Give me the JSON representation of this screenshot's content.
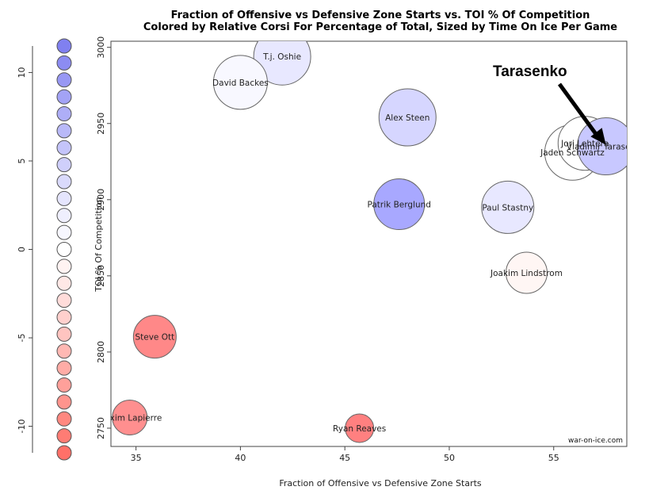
{
  "chart_data": {
    "type": "scatter",
    "title": "Fraction of Offensive vs Defensive Zone Starts vs. TOI % Of Competition",
    "subtitle": "Colored by Relative Corsi For Percentage of Total, Sized by Time On Ice Per Game",
    "xlabel": "Fraction of Offensive vs Defensive Zone Starts",
    "ylabel": "TOI % Of Competition",
    "xlim": [
      33.8,
      58.5
    ],
    "ylim": [
      2738,
      3004
    ],
    "xticks": [
      35,
      40,
      45,
      50,
      55
    ],
    "yticks": [
      2750,
      2800,
      2850,
      2900,
      2950,
      3000
    ],
    "grid": false,
    "credit": "war-on-ice.com",
    "annotation": {
      "text": "Tarasenko",
      "target_x": 57.5,
      "target_y": 2936
    },
    "points": [
      {
        "name": "T.j. Oshie",
        "x": 42.0,
        "y": 2994,
        "size": 36,
        "color": "#e8e8ff"
      },
      {
        "name": "David Backes",
        "x": 40.0,
        "y": 2977,
        "size": 34,
        "color": "#f8f8ff"
      },
      {
        "name": "Alex Steen",
        "x": 48.0,
        "y": 2954,
        "size": 36,
        "color": "#d6d6ff"
      },
      {
        "name": "Jaden Schwartz",
        "x": 55.9,
        "y": 2931,
        "size": 35,
        "color": "#ffffff"
      },
      {
        "name": "Jori Lehtera",
        "x": 56.5,
        "y": 2937,
        "size": 34,
        "color": "#ffffff"
      },
      {
        "name": "Vladimir Tarasenko",
        "x": 57.5,
        "y": 2935,
        "size": 36,
        "color": "#c8c8ff"
      },
      {
        "name": "Patrik Berglund",
        "x": 47.6,
        "y": 2897,
        "size": 32,
        "color": "#a8a8ff"
      },
      {
        "name": "Paul Stastny",
        "x": 52.8,
        "y": 2895,
        "size": 33,
        "color": "#e8e8ff"
      },
      {
        "name": "Joakim Lindstrom",
        "x": 53.7,
        "y": 2852,
        "size": 26,
        "color": "#fff6f4"
      },
      {
        "name": "Steve Ott",
        "x": 35.9,
        "y": 2810,
        "size": 27,
        "color": "#ff8888"
      },
      {
        "name": "Maxim Lapierre",
        "x": 34.7,
        "y": 2757,
        "size": 22,
        "color": "#ff8f8f"
      },
      {
        "name": "Ryan Reaves",
        "x": 45.7,
        "y": 2750,
        "size": 18,
        "color": "#ff8080"
      }
    ],
    "colorbar": {
      "ticks": [
        10,
        5,
        0,
        -5,
        -10
      ],
      "range": [
        11.5,
        -11.5
      ],
      "colors": [
        "#8080f0",
        "#8c8cf2",
        "#9898f4",
        "#a3a3f6",
        "#aeaef7",
        "#b9b9f8",
        "#c4c4fa",
        "#cfcffb",
        "#dadafc",
        "#e5e5fd",
        "#efeffe",
        "#f7f7ff",
        "#ffffff",
        "#fff3f2",
        "#ffe8e6",
        "#ffdcda",
        "#ffd0cd",
        "#ffc4c0",
        "#ffb8b3",
        "#ffaca6",
        "#ffa09a",
        "#ff948d",
        "#ff8880",
        "#ff7c74",
        "#ff7068"
      ]
    }
  }
}
